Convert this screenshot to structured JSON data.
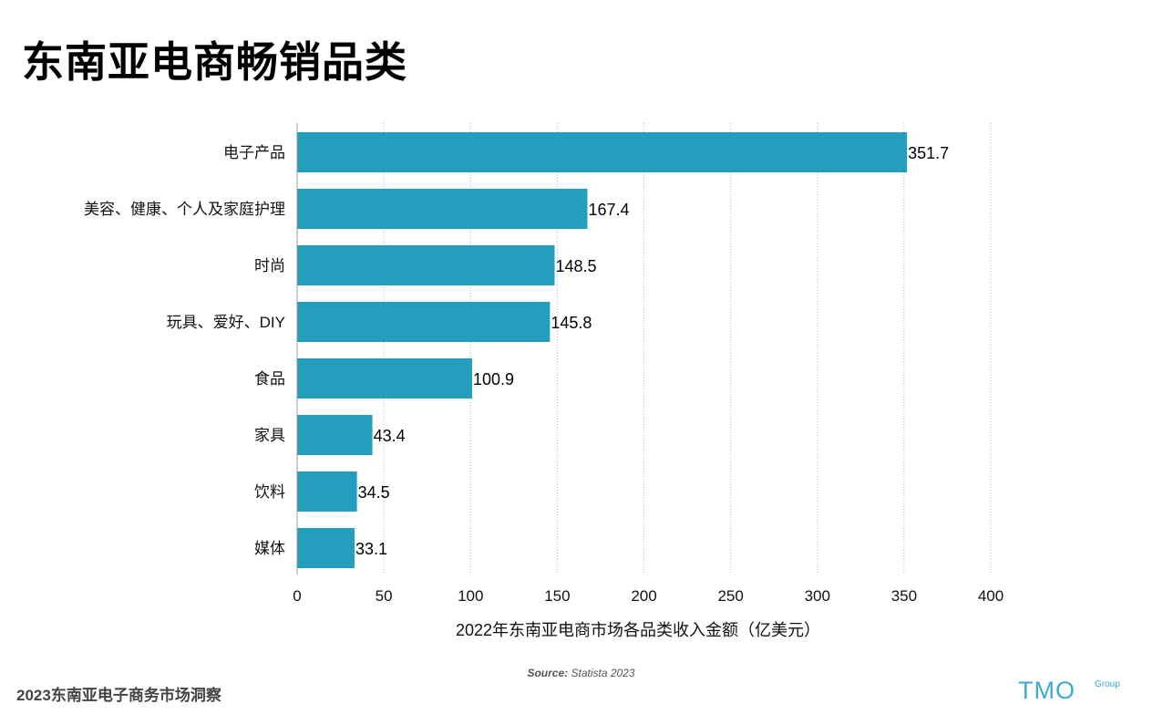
{
  "title": "东南亚电商畅销品类",
  "chart_data": {
    "type": "bar",
    "orientation": "horizontal",
    "categories": [
      "电子产品",
      "美容、健康、个人及家庭护理",
      "时尚",
      "玩具、爱好、DIY",
      "食品",
      "家具",
      "饮料",
      "媒体"
    ],
    "values": [
      351.7,
      167.4,
      148.5,
      145.8,
      100.9,
      43.4,
      34.5,
      33.1
    ],
    "value_labels": [
      "351.7",
      "167.4",
      "148.5",
      "145.8",
      "100.9",
      "43.4",
      "34.5",
      "33.1"
    ],
    "xlabel": "2022年东南亚电商市场各品类收入金额（亿美元）",
    "xlim": [
      0,
      400
    ],
    "xticks": [
      "0",
      "50",
      "100",
      "150",
      "200",
      "250",
      "300",
      "350",
      "400"
    ],
    "grid": "vertical dotted",
    "bar_color": "#239fbd"
  },
  "source": {
    "label": "Source:",
    "text": "Statista 2023"
  },
  "footer": "2023东南亚电子商务市场洞察",
  "logo": {
    "main": "TMO",
    "sub": "Group"
  }
}
